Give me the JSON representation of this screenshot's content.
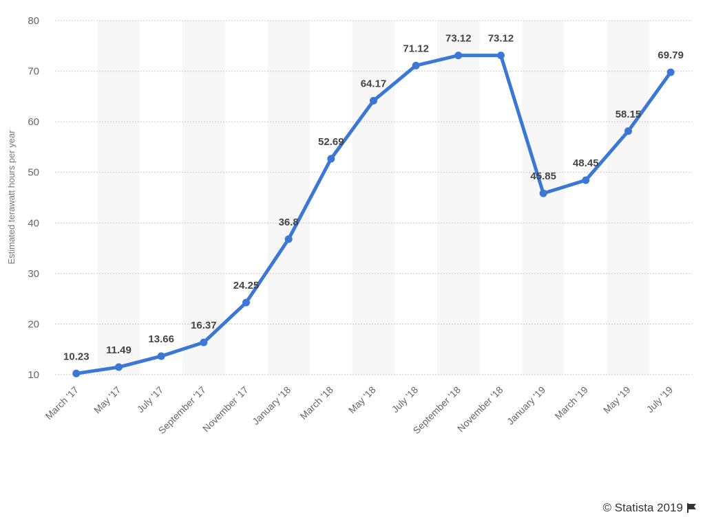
{
  "chart_data": {
    "type": "line",
    "categories": [
      "March '17",
      "May '17",
      "July '17",
      "September '17",
      "November '17",
      "January '18",
      "March '18",
      "May '18",
      "July '18",
      "September '18",
      "November '18",
      "January '19",
      "March '19",
      "May '19",
      "July '19"
    ],
    "series": [
      {
        "values": [
          10.23,
          11.49,
          13.66,
          16.37,
          24.25,
          36.8,
          52.69,
          64.17,
          71.12,
          73.12,
          73.12,
          45.85,
          48.45,
          58.15,
          69.79
        ]
      }
    ],
    "data_labels": [
      "10.23",
      "11.49",
      "13.66",
      "16.37",
      "24.25",
      "36.8",
      "52.69",
      "64.17",
      "71.12",
      "73.12",
      "73.12",
      "45.85",
      "48.45",
      "58.15",
      "69.79"
    ],
    "title": "",
    "xlabel": "",
    "ylabel": "Estimated terawatt hours per year",
    "ylim": [
      10,
      80
    ],
    "yticks": [
      10,
      20,
      30,
      40,
      50,
      60,
      70,
      80
    ],
    "grid": true,
    "line_color": "#3b78d6",
    "band_color": "#f7f7f7",
    "grid_color": "#c8c8c8"
  },
  "footer": {
    "source": "© Statista 2019",
    "icon": "flag-icon"
  }
}
